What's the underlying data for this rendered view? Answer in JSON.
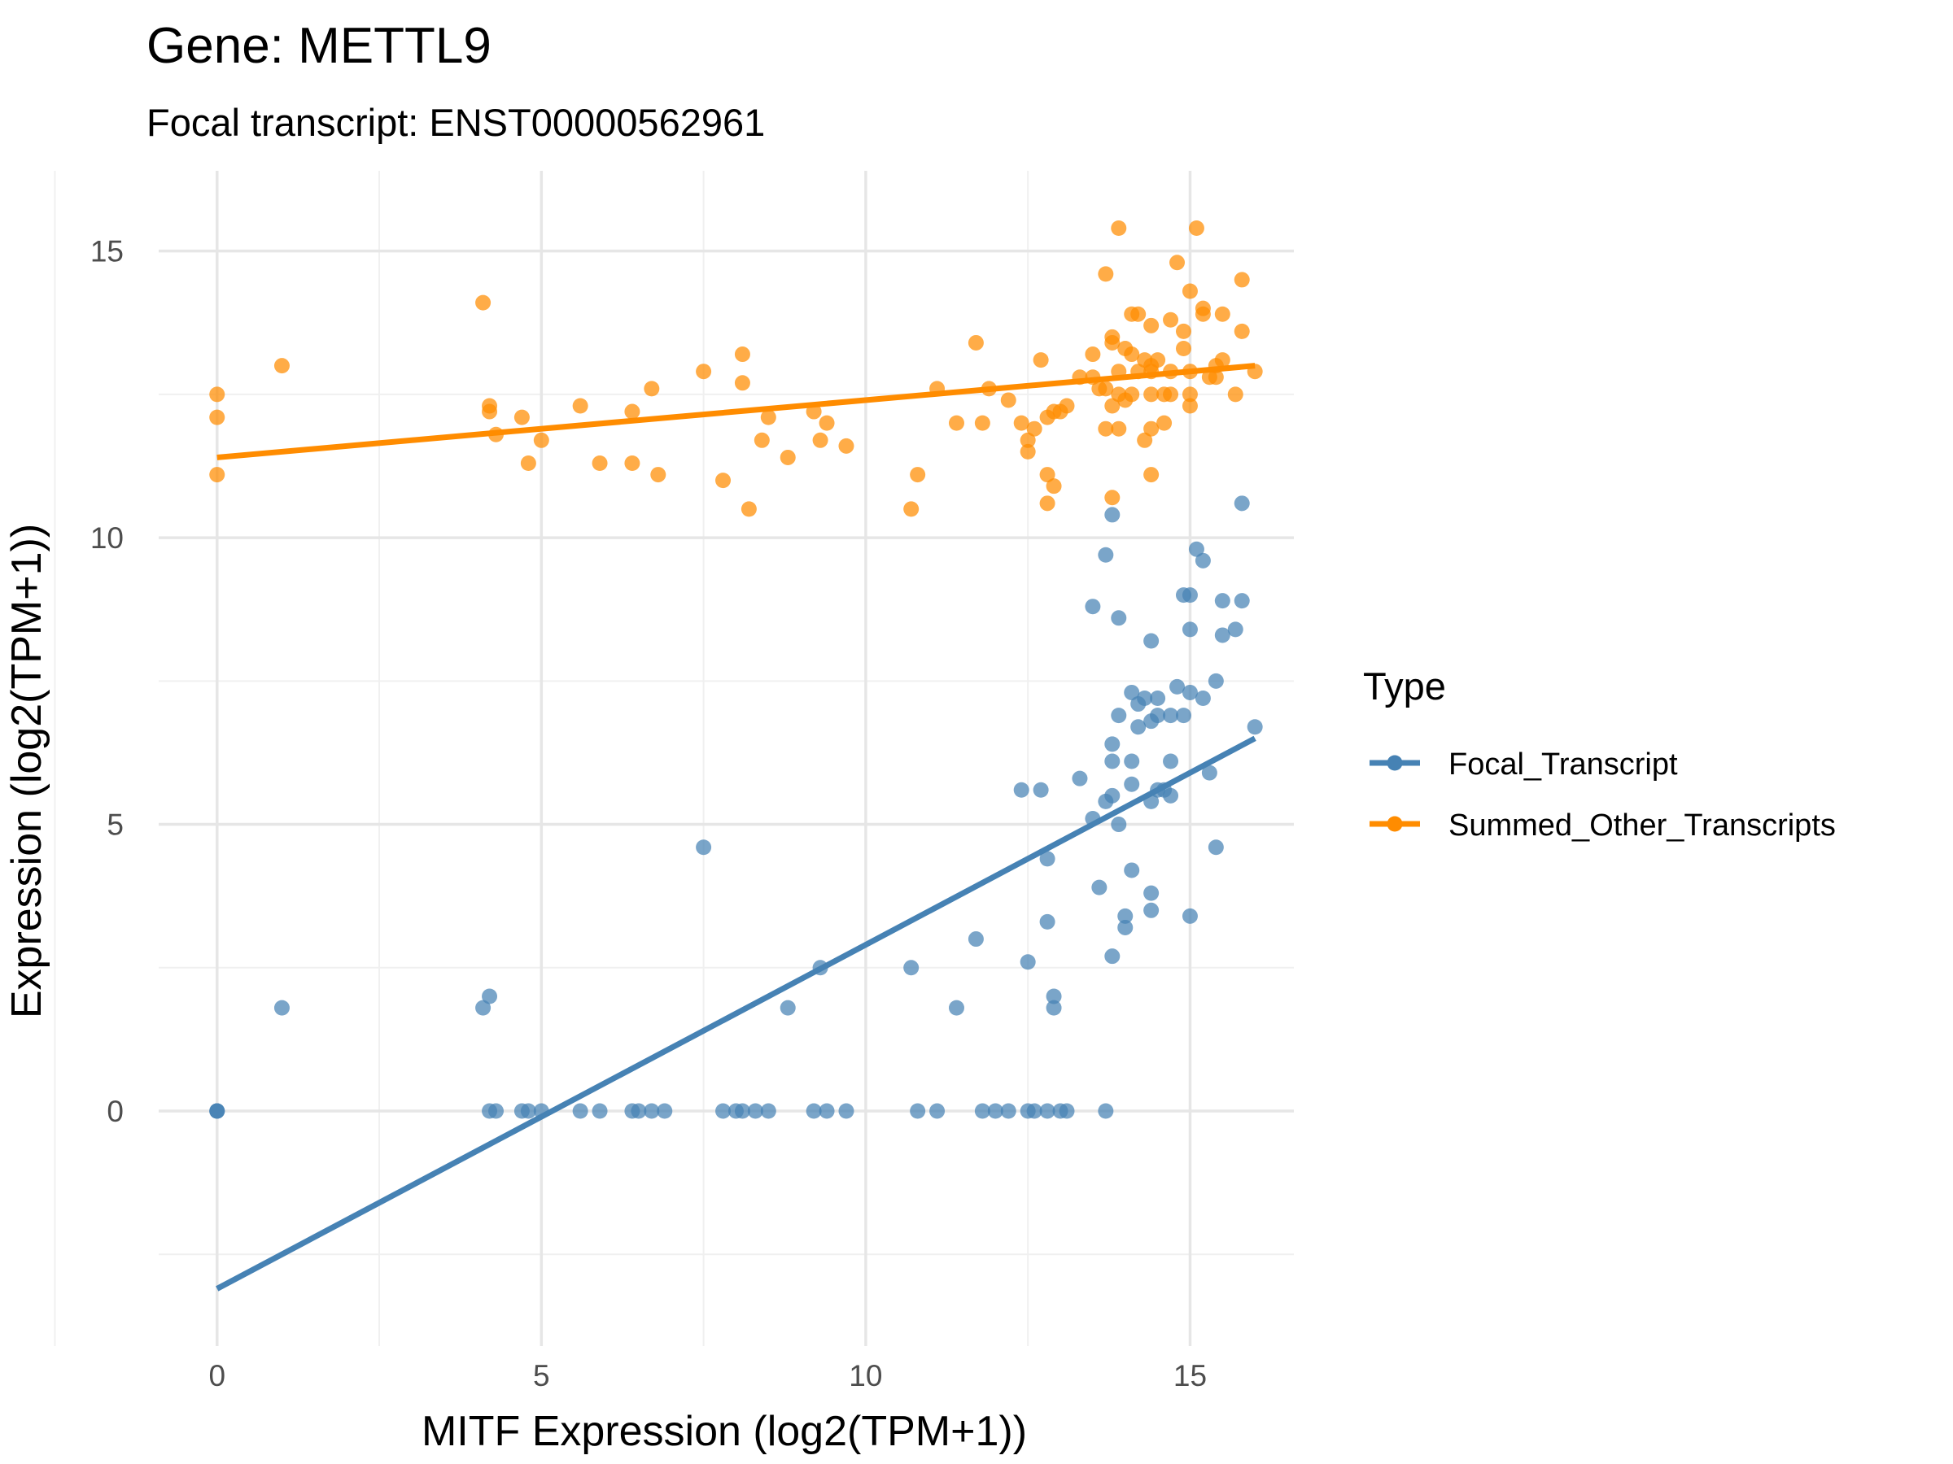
{
  "chart_data": {
    "type": "scatter",
    "title": "Gene: METTL9",
    "subtitle": "Focal transcript: ENST00000562961",
    "xlabel": "MITF Expression (log2(TPM+1))",
    "ylabel": "Expression (log2(TPM+1))",
    "xlim": [
      -0.9,
      16.6
    ],
    "ylim": [
      -4.1,
      16.4
    ],
    "x_ticks": [
      0,
      5,
      10,
      15
    ],
    "y_ticks": [
      0,
      5,
      10,
      15
    ],
    "grid": true,
    "legend": {
      "title": "Type",
      "position": "right",
      "entries": [
        "Focal_Transcript",
        "Summed_Other_Transcripts"
      ]
    },
    "series": [
      {
        "name": "Focal_Transcript",
        "color": "#4682B4",
        "trend": {
          "x": [
            0,
            16
          ],
          "y": [
            -3.1,
            6.5
          ]
        },
        "points": [
          [
            0,
            0
          ],
          [
            0,
            0
          ],
          [
            0,
            0
          ],
          [
            1,
            1.8
          ],
          [
            4.1,
            1.8
          ],
          [
            4.2,
            2.0
          ],
          [
            4.2,
            0
          ],
          [
            4.3,
            0
          ],
          [
            4.7,
            0
          ],
          [
            4.8,
            0
          ],
          [
            5.0,
            0
          ],
          [
            5.6,
            0
          ],
          [
            5.9,
            0
          ],
          [
            6.4,
            0
          ],
          [
            6.5,
            0
          ],
          [
            6.7,
            0
          ],
          [
            6.9,
            0
          ],
          [
            7.5,
            4.6
          ],
          [
            7.8,
            0
          ],
          [
            8.0,
            0
          ],
          [
            8.1,
            0
          ],
          [
            8.3,
            0
          ],
          [
            8.5,
            0
          ],
          [
            8.8,
            1.8
          ],
          [
            9.2,
            0
          ],
          [
            9.3,
            2.5
          ],
          [
            9.4,
            0
          ],
          [
            9.7,
            0
          ],
          [
            10.7,
            2.5
          ],
          [
            10.8,
            0
          ],
          [
            11.1,
            0
          ],
          [
            11.4,
            1.8
          ],
          [
            11.7,
            3.0
          ],
          [
            11.8,
            0
          ],
          [
            12.0,
            0
          ],
          [
            12.2,
            0
          ],
          [
            12.4,
            5.6
          ],
          [
            12.5,
            0
          ],
          [
            12.5,
            2.6
          ],
          [
            12.6,
            0
          ],
          [
            12.7,
            5.6
          ],
          [
            12.8,
            4.4
          ],
          [
            12.8,
            3.3
          ],
          [
            12.8,
            0
          ],
          [
            12.9,
            1.8
          ],
          [
            12.9,
            2.0
          ],
          [
            13.0,
            0
          ],
          [
            13.1,
            0
          ],
          [
            13.3,
            5.8
          ],
          [
            13.5,
            5.1
          ],
          [
            13.5,
            8.8
          ],
          [
            13.6,
            3.9
          ],
          [
            13.7,
            9.7
          ],
          [
            13.7,
            5.4
          ],
          [
            13.7,
            0
          ],
          [
            13.8,
            10.4
          ],
          [
            13.8,
            6.4
          ],
          [
            13.8,
            6.1
          ],
          [
            13.8,
            5.5
          ],
          [
            13.8,
            2.7
          ],
          [
            13.9,
            8.6
          ],
          [
            13.9,
            6.9
          ],
          [
            13.9,
            5.0
          ],
          [
            14.0,
            3.4
          ],
          [
            14.0,
            3.2
          ],
          [
            14.1,
            6.1
          ],
          [
            14.1,
            5.7
          ],
          [
            14.1,
            4.2
          ],
          [
            14.1,
            7.3
          ],
          [
            14.2,
            6.7
          ],
          [
            14.2,
            7.1
          ],
          [
            14.3,
            7.2
          ],
          [
            14.4,
            8.2
          ],
          [
            14.4,
            6.8
          ],
          [
            14.4,
            5.4
          ],
          [
            14.4,
            3.8
          ],
          [
            14.4,
            3.5
          ],
          [
            14.5,
            7.2
          ],
          [
            14.5,
            6.9
          ],
          [
            14.5,
            5.6
          ],
          [
            14.6,
            5.6
          ],
          [
            14.7,
            6.1
          ],
          [
            14.7,
            6.9
          ],
          [
            14.7,
            5.5
          ],
          [
            14.8,
            7.4
          ],
          [
            14.9,
            9.0
          ],
          [
            14.9,
            6.9
          ],
          [
            15.0,
            9.0
          ],
          [
            15.0,
            8.4
          ],
          [
            15.0,
            7.3
          ],
          [
            15.0,
            3.4
          ],
          [
            15.1,
            9.8
          ],
          [
            15.2,
            9.6
          ],
          [
            15.2,
            7.2
          ],
          [
            15.3,
            5.9
          ],
          [
            15.4,
            4.6
          ],
          [
            15.4,
            7.5
          ],
          [
            15.5,
            8.9
          ],
          [
            15.5,
            8.3
          ],
          [
            15.7,
            8.4
          ],
          [
            15.8,
            10.6
          ],
          [
            15.8,
            8.9
          ],
          [
            16.0,
            6.7
          ]
        ]
      },
      {
        "name": "Summed_Other_Transcripts",
        "color": "#FF8C00",
        "trend": {
          "x": [
            0,
            16
          ],
          "y": [
            11.4,
            13.0
          ]
        },
        "points": [
          [
            0,
            12.5
          ],
          [
            0,
            12.1
          ],
          [
            0,
            11.1
          ],
          [
            1,
            13.0
          ],
          [
            4.1,
            14.1
          ],
          [
            4.2,
            12.2
          ],
          [
            4.2,
            12.3
          ],
          [
            4.3,
            11.8
          ],
          [
            4.7,
            12.1
          ],
          [
            4.8,
            11.3
          ],
          [
            5.0,
            11.7
          ],
          [
            5.6,
            12.3
          ],
          [
            5.9,
            11.3
          ],
          [
            6.4,
            12.2
          ],
          [
            6.4,
            11.3
          ],
          [
            6.7,
            12.6
          ],
          [
            6.8,
            11.1
          ],
          [
            7.5,
            12.9
          ],
          [
            7.8,
            11.0
          ],
          [
            8.1,
            13.2
          ],
          [
            8.1,
            12.7
          ],
          [
            8.2,
            10.5
          ],
          [
            8.4,
            11.7
          ],
          [
            8.5,
            12.1
          ],
          [
            8.8,
            11.4
          ],
          [
            9.2,
            12.2
          ],
          [
            9.3,
            11.7
          ],
          [
            9.4,
            12.0
          ],
          [
            9.7,
            11.6
          ],
          [
            10.7,
            10.5
          ],
          [
            10.8,
            11.1
          ],
          [
            11.1,
            12.6
          ],
          [
            11.4,
            12.0
          ],
          [
            11.7,
            13.4
          ],
          [
            11.8,
            12.0
          ],
          [
            11.9,
            12.6
          ],
          [
            12.2,
            12.4
          ],
          [
            12.4,
            12.0
          ],
          [
            12.5,
            11.7
          ],
          [
            12.5,
            11.5
          ],
          [
            12.6,
            11.9
          ],
          [
            12.7,
            13.1
          ],
          [
            12.8,
            12.1
          ],
          [
            12.8,
            11.1
          ],
          [
            12.8,
            10.6
          ],
          [
            12.9,
            12.2
          ],
          [
            12.9,
            10.9
          ],
          [
            13.0,
            12.2
          ],
          [
            13.1,
            12.3
          ],
          [
            13.3,
            12.8
          ],
          [
            13.5,
            12.8
          ],
          [
            13.5,
            13.2
          ],
          [
            13.6,
            12.6
          ],
          [
            13.7,
            14.6
          ],
          [
            13.7,
            11.9
          ],
          [
            13.7,
            12.6
          ],
          [
            13.8,
            13.5
          ],
          [
            13.8,
            13.4
          ],
          [
            13.8,
            12.3
          ],
          [
            13.8,
            10.7
          ],
          [
            13.9,
            15.4
          ],
          [
            13.9,
            12.9
          ],
          [
            13.9,
            12.5
          ],
          [
            13.9,
            11.9
          ],
          [
            14.0,
            13.3
          ],
          [
            14.0,
            12.4
          ],
          [
            14.1,
            13.9
          ],
          [
            14.1,
            13.2
          ],
          [
            14.1,
            12.5
          ],
          [
            14.2,
            13.9
          ],
          [
            14.2,
            12.9
          ],
          [
            14.3,
            13.1
          ],
          [
            14.3,
            11.7
          ],
          [
            14.4,
            13.7
          ],
          [
            14.4,
            13.0
          ],
          [
            14.4,
            12.9
          ],
          [
            14.4,
            12.5
          ],
          [
            14.4,
            11.9
          ],
          [
            14.4,
            11.1
          ],
          [
            14.5,
            13.1
          ],
          [
            14.6,
            12.0
          ],
          [
            14.6,
            12.5
          ],
          [
            14.7,
            13.8
          ],
          [
            14.7,
            12.9
          ],
          [
            14.7,
            12.5
          ],
          [
            14.8,
            14.8
          ],
          [
            14.9,
            13.6
          ],
          [
            14.9,
            13.3
          ],
          [
            15.0,
            14.3
          ],
          [
            15.0,
            12.5
          ],
          [
            15.0,
            12.9
          ],
          [
            15.0,
            12.3
          ],
          [
            15.1,
            15.4
          ],
          [
            15.2,
            13.9
          ],
          [
            15.2,
            14.0
          ],
          [
            15.3,
            12.8
          ],
          [
            15.4,
            13.0
          ],
          [
            15.4,
            12.8
          ],
          [
            15.5,
            13.9
          ],
          [
            15.5,
            13.1
          ],
          [
            15.7,
            12.5
          ],
          [
            15.8,
            13.6
          ],
          [
            15.8,
            14.5
          ],
          [
            16.0,
            12.9
          ]
        ]
      }
    ]
  }
}
